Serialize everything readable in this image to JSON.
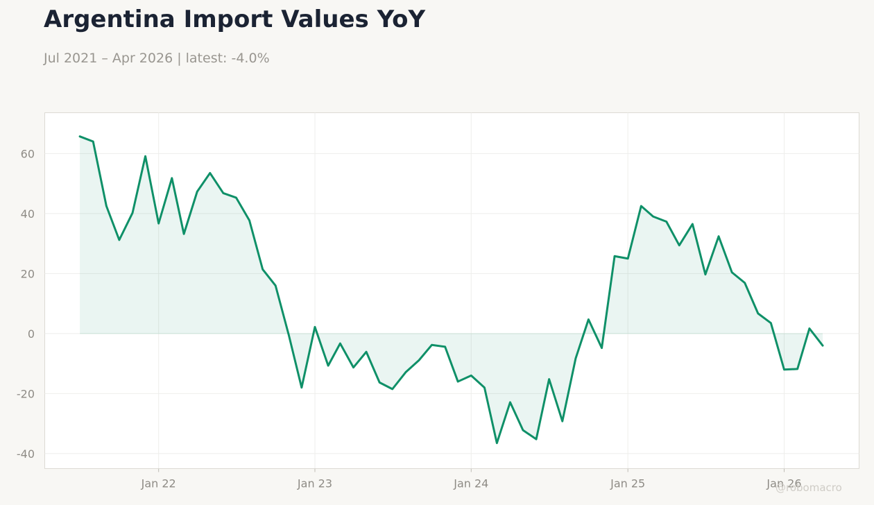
{
  "title": "Argentina Import Values YoY",
  "subtitle": "Jul 2021 – Apr 2026 | latest: -4.0%",
  "watermark": "@robomacro",
  "colors": {
    "background": "#f8f7f4",
    "plot_background": "#ffffff",
    "line": "#0f9068",
    "fill": "#0f9068",
    "title": "#1b2333",
    "muted": "#999690"
  },
  "chart_data": {
    "type": "area",
    "title": "Argentina Import Values YoY",
    "subtitle": "Jul 2021 – Apr 2026 | latest: -4.0%",
    "xlabel": "",
    "ylabel": "",
    "x": [
      "2021-07",
      "2021-08",
      "2021-09",
      "2021-10",
      "2021-11",
      "2021-12",
      "2022-01",
      "2022-02",
      "2022-03",
      "2022-04",
      "2022-05",
      "2022-06",
      "2022-07",
      "2022-08",
      "2022-09",
      "2022-10",
      "2022-11",
      "2022-12",
      "2023-01",
      "2023-02",
      "2023-03",
      "2023-04",
      "2023-05",
      "2023-06",
      "2023-07",
      "2023-08",
      "2023-09",
      "2023-10",
      "2023-11",
      "2023-12",
      "2024-01",
      "2024-02",
      "2024-03",
      "2024-04",
      "2024-05",
      "2024-06",
      "2024-07",
      "2024-08",
      "2024-09",
      "2024-10",
      "2024-11",
      "2024-12",
      "2025-01",
      "2025-02",
      "2025-03",
      "2025-04",
      "2025-05",
      "2025-06",
      "2025-07",
      "2025-08",
      "2025-09",
      "2025-10",
      "2025-11",
      "2025-12",
      "2026-01",
      "2026-02",
      "2026-03",
      "2026-04"
    ],
    "series": [
      {
        "values": [
          65.7,
          64.0,
          42.5,
          31.2,
          40.2,
          59.1,
          36.7,
          51.8,
          33.2,
          47.3,
          53.5,
          46.8,
          45.3,
          37.7,
          21.4,
          16.0,
          -0.5,
          -18.0,
          2.2,
          -10.7,
          -3.3,
          -11.3,
          -6.1,
          -16.3,
          -18.5,
          -12.9,
          -8.9,
          -3.8,
          -4.4,
          -16.0,
          -14.0,
          -18.0,
          -36.5,
          -22.9,
          -32.2,
          -35.2,
          -15.2,
          -29.2,
          -8.3,
          4.7,
          -4.8,
          25.8,
          25.0,
          42.5,
          39.0,
          37.3,
          29.4,
          36.5,
          19.7,
          32.4,
          20.4,
          16.9,
          6.7,
          3.5,
          -12.0,
          -11.8,
          1.7,
          -4.0
        ]
      }
    ],
    "x_ticks": [
      {
        "date": "2022-01",
        "label": "Jan 22"
      },
      {
        "date": "2023-01",
        "label": "Jan 23"
      },
      {
        "date": "2024-01",
        "label": "Jan 24"
      },
      {
        "date": "2025-01",
        "label": "Jan 25"
      },
      {
        "date": "2026-01",
        "label": "Jan 26"
      }
    ],
    "y_ticks": [
      60,
      40,
      20,
      0,
      -20,
      -40
    ],
    "ylim": [
      -45,
      73.6
    ],
    "xlim": [
      "2021-04-10",
      "2026-06-25"
    ],
    "grid": true,
    "legend": "none",
    "fill_to_zero": true
  }
}
